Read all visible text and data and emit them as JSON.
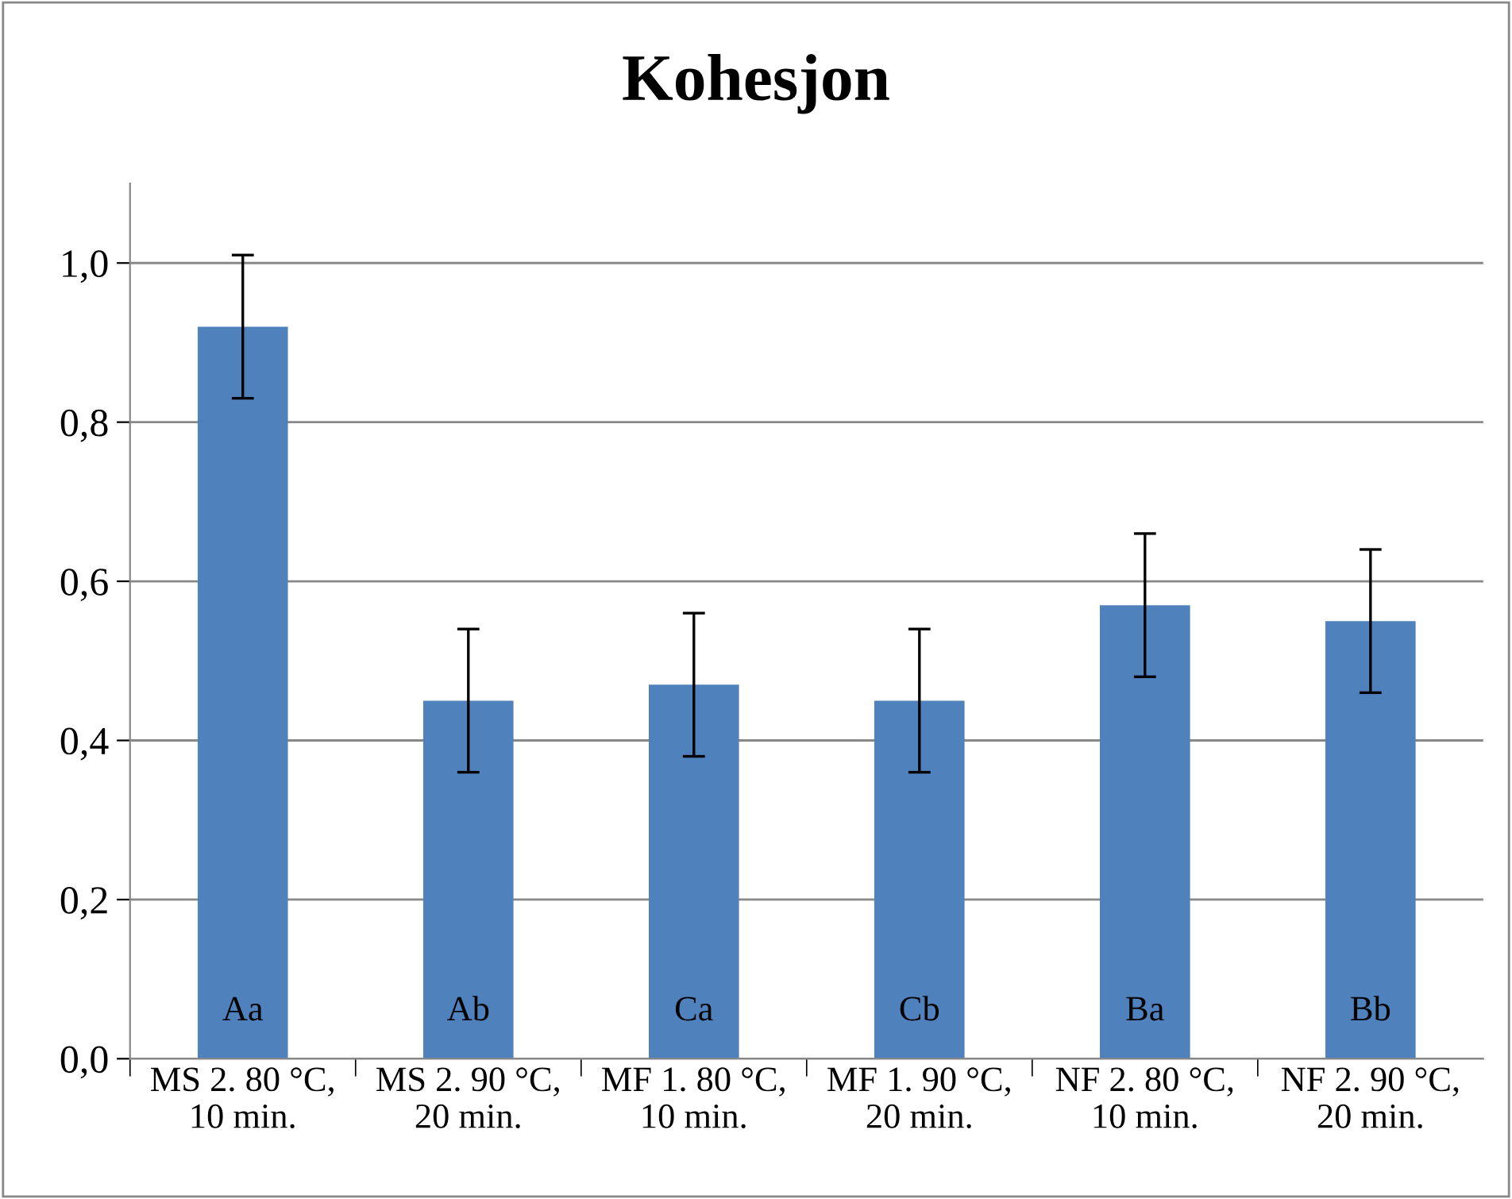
{
  "chart_data": {
    "type": "bar",
    "title": "Kohesjon",
    "categories": [
      "MS 2. 80 °C,\n10 min.",
      "MS 2. 90 °C,\n20 min.",
      "MF 1. 80 °C,\n10 min.",
      "MF 1. 90 °C,\n20 min.",
      "NF 2. 80 °C,\n10 min.",
      "NF 2. 90 °C,\n20 min."
    ],
    "values": [
      0.92,
      0.45,
      0.47,
      0.45,
      0.57,
      0.55
    ],
    "errors": [
      0.09,
      0.09,
      0.09,
      0.09,
      0.09,
      0.09
    ],
    "color": "#4f81bd",
    "ylim": [
      0,
      1.1
    ],
    "yticks": [
      {
        "value": 0,
        "label": "0,0"
      },
      {
        "value": 0.2,
        "label": "0,2"
      },
      {
        "value": 0.4,
        "label": "0,4"
      },
      {
        "value": 0.6,
        "label": "0,6"
      },
      {
        "value": 0.8,
        "label": "0,8"
      },
      {
        "value": 1.0,
        "label": "1,0"
      }
    ],
    "grid": "y",
    "legend": false,
    "value_labels": [
      "Aa",
      "Ab",
      "Ca",
      "Cb",
      "Ba",
      "Bb"
    ]
  }
}
